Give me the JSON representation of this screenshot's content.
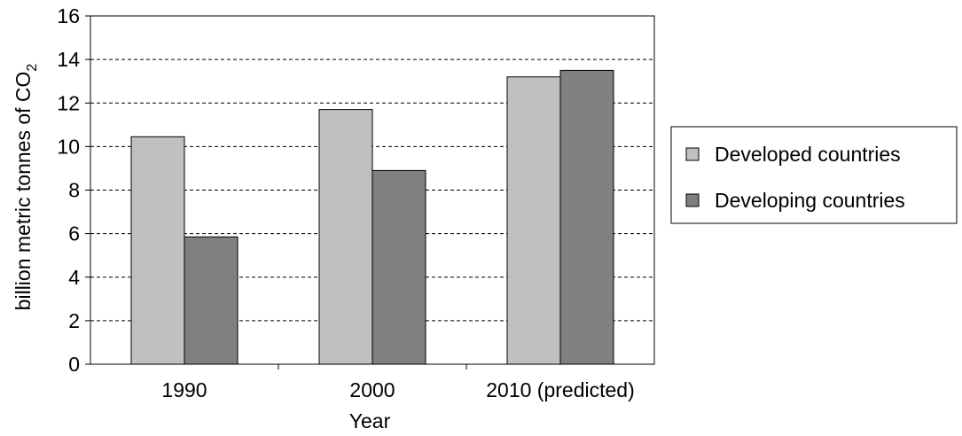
{
  "chart_data": {
    "type": "bar",
    "categories": [
      "1990",
      "2000",
      "2010 (predicted)"
    ],
    "series": [
      {
        "name": "Developed countries",
        "values": [
          10.45,
          11.7,
          13.2
        ],
        "color": "#c0c0c0"
      },
      {
        "name": "Developing countries",
        "values": [
          5.85,
          8.9,
          13.5
        ],
        "color": "#808080"
      }
    ],
    "xlabel": "Year",
    "ylabel": {
      "text": "billion metric tonnes of CO",
      "subscript": "2"
    },
    "ylim": [
      0,
      16
    ],
    "yticks": [
      0,
      2,
      4,
      6,
      8,
      10,
      12,
      14,
      16
    ],
    "grid": "dashed horizontal",
    "legend_position": "right"
  }
}
